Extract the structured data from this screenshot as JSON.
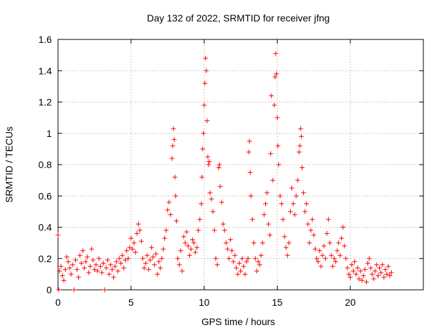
{
  "chart_data": {
    "type": "scatter",
    "title": "Day 132 of 2022, SRMTID for receiver jfng",
    "xlabel": "GPS time / hours",
    "ylabel": "SRMTID / TECUs",
    "xlim": [
      0,
      25
    ],
    "ylim": [
      0,
      1.6
    ],
    "xticks": [
      0,
      5,
      10,
      15,
      20
    ],
    "xtick_labels": [
      "0",
      "5",
      "10",
      "15",
      "20"
    ],
    "yticks": [
      0,
      0.2,
      0.4,
      0.6,
      0.8,
      1,
      1.2,
      1.4,
      1.6
    ],
    "ytick_labels": [
      "0",
      "0.2",
      "0.4",
      "0.6",
      "0.8",
      "1",
      "1.2",
      "1.4",
      "1.6"
    ],
    "grid": true,
    "marker": "+",
    "color": "#ff0000",
    "series": [
      {
        "name": "jfng",
        "points": [
          [
            0.0,
            0.35
          ],
          [
            0.05,
            0.0
          ],
          [
            0.1,
            0.12
          ],
          [
            0.2,
            0.15
          ],
          [
            0.3,
            0.09
          ],
          [
            0.4,
            0.06
          ],
          [
            0.5,
            0.13
          ],
          [
            0.6,
            0.21
          ],
          [
            0.7,
            0.18
          ],
          [
            0.8,
            0.14
          ],
          [
            0.9,
            0.1
          ],
          [
            1.0,
            0.16
          ],
          [
            1.1,
            0.0
          ],
          [
            1.2,
            0.19
          ],
          [
            1.3,
            0.13
          ],
          [
            1.4,
            0.08
          ],
          [
            1.5,
            0.22
          ],
          [
            1.6,
            0.17
          ],
          [
            1.7,
            0.25
          ],
          [
            1.8,
            0.14
          ],
          [
            1.9,
            0.18
          ],
          [
            2.0,
            0.21
          ],
          [
            2.1,
            0.11
          ],
          [
            2.2,
            0.15
          ],
          [
            2.3,
            0.26
          ],
          [
            2.4,
            0.19
          ],
          [
            2.5,
            0.13
          ],
          [
            2.6,
            0.16
          ],
          [
            2.7,
            0.12
          ],
          [
            2.8,
            0.2
          ],
          [
            2.9,
            0.15
          ],
          [
            3.0,
            0.11
          ],
          [
            3.1,
            0.17
          ],
          [
            3.2,
            0.0
          ],
          [
            3.3,
            0.14
          ],
          [
            3.4,
            0.19
          ],
          [
            3.5,
            0.1
          ],
          [
            3.6,
            0.16
          ],
          [
            3.7,
            0.13
          ],
          [
            3.8,
            0.08
          ],
          [
            3.9,
            0.15
          ],
          [
            4.0,
            0.18
          ],
          [
            4.1,
            0.12
          ],
          [
            4.2,
            0.2
          ],
          [
            4.3,
            0.17
          ],
          [
            4.4,
            0.22
          ],
          [
            4.5,
            0.14
          ],
          [
            4.6,
            0.19
          ],
          [
            4.7,
            0.25
          ],
          [
            4.8,
            0.2
          ],
          [
            4.9,
            0.27
          ],
          [
            5.0,
            0.33
          ],
          [
            5.1,
            0.26
          ],
          [
            5.2,
            0.3
          ],
          [
            5.3,
            0.24
          ],
          [
            5.4,
            0.36
          ],
          [
            5.5,
            0.42
          ],
          [
            5.6,
            0.38
          ],
          [
            5.7,
            0.31
          ],
          [
            5.8,
            0.2
          ],
          [
            5.9,
            0.14
          ],
          [
            6.0,
            0.17
          ],
          [
            6.1,
            0.22
          ],
          [
            6.2,
            0.13
          ],
          [
            6.3,
            0.19
          ],
          [
            6.4,
            0.27
          ],
          [
            6.5,
            0.21
          ],
          [
            6.6,
            0.16
          ],
          [
            6.7,
            0.23
          ],
          [
            6.8,
            0.1
          ],
          [
            6.9,
            0.18
          ],
          [
            7.0,
            0.14
          ],
          [
            7.1,
            0.2
          ],
          [
            7.2,
            0.26
          ],
          [
            7.3,
            0.33
          ],
          [
            7.4,
            0.38
          ],
          [
            7.5,
            0.51
          ],
          [
            7.6,
            0.56
          ],
          [
            7.7,
            0.48
          ],
          [
            7.8,
            0.84
          ],
          [
            7.85,
            0.92
          ],
          [
            7.9,
            1.03
          ],
          [
            7.95,
            0.96
          ],
          [
            8.0,
            0.72
          ],
          [
            8.05,
            0.6
          ],
          [
            8.1,
            0.44
          ],
          [
            8.2,
            0.2
          ],
          [
            8.3,
            0.16
          ],
          [
            8.4,
            0.25
          ],
          [
            8.5,
            0.12
          ],
          [
            8.6,
            0.34
          ],
          [
            8.7,
            0.3
          ],
          [
            8.8,
            0.37
          ],
          [
            8.9,
            0.28
          ],
          [
            9.0,
            0.22
          ],
          [
            9.1,
            0.26
          ],
          [
            9.2,
            0.32
          ],
          [
            9.3,
            0.3
          ],
          [
            9.4,
            0.24
          ],
          [
            9.5,
            0.27
          ],
          [
            9.6,
            0.38
          ],
          [
            9.7,
            0.45
          ],
          [
            9.8,
            0.55
          ],
          [
            9.85,
            0.72
          ],
          [
            9.9,
            0.9
          ],
          [
            9.95,
            1.0
          ],
          [
            10.0,
            1.18
          ],
          [
            10.05,
            1.32
          ],
          [
            10.1,
            1.48
          ],
          [
            10.15,
            1.4
          ],
          [
            10.2,
            1.08
          ],
          [
            10.25,
            0.85
          ],
          [
            10.3,
            0.8
          ],
          [
            10.35,
            0.82
          ],
          [
            10.4,
            0.62
          ],
          [
            10.5,
            0.58
          ],
          [
            10.6,
            0.5
          ],
          [
            10.7,
            0.38
          ],
          [
            10.8,
            0.2
          ],
          [
            10.9,
            0.16
          ],
          [
            11.0,
            0.78
          ],
          [
            11.05,
            0.8
          ],
          [
            11.1,
            0.66
          ],
          [
            11.2,
            0.56
          ],
          [
            11.3,
            0.42
          ],
          [
            11.4,
            0.38
          ],
          [
            11.5,
            0.3
          ],
          [
            11.6,
            0.26
          ],
          [
            11.7,
            0.2
          ],
          [
            11.8,
            0.32
          ],
          [
            11.9,
            0.25
          ],
          [
            12.0,
            0.18
          ],
          [
            12.1,
            0.22
          ],
          [
            12.2,
            0.14
          ],
          [
            12.3,
            0.1
          ],
          [
            12.4,
            0.17
          ],
          [
            12.5,
            0.12
          ],
          [
            12.6,
            0.2
          ],
          [
            12.7,
            0.15
          ],
          [
            12.8,
            0.1
          ],
          [
            12.9,
            0.18
          ],
          [
            13.0,
            0.2
          ],
          [
            13.05,
            0.88
          ],
          [
            13.1,
            0.95
          ],
          [
            13.15,
            0.75
          ],
          [
            13.2,
            0.6
          ],
          [
            13.3,
            0.45
          ],
          [
            13.4,
            0.3
          ],
          [
            13.5,
            0.2
          ],
          [
            13.6,
            0.12
          ],
          [
            13.7,
            0.18
          ],
          [
            13.8,
            0.16
          ],
          [
            13.9,
            0.22
          ],
          [
            14.0,
            0.3
          ],
          [
            14.1,
            0.48
          ],
          [
            14.2,
            0.55
          ],
          [
            14.3,
            0.62
          ],
          [
            14.4,
            0.42
          ],
          [
            14.5,
            0.35
          ],
          [
            14.55,
            0.87
          ],
          [
            14.6,
            1.24
          ],
          [
            14.7,
            0.7
          ],
          [
            14.8,
            1.18
          ],
          [
            14.85,
            1.36
          ],
          [
            14.9,
            1.51
          ],
          [
            14.95,
            1.38
          ],
          [
            15.0,
            1.1
          ],
          [
            15.05,
            0.92
          ],
          [
            15.1,
            0.8
          ],
          [
            15.2,
            0.6
          ],
          [
            15.3,
            0.55
          ],
          [
            15.4,
            0.45
          ],
          [
            15.5,
            0.34
          ],
          [
            15.6,
            0.27
          ],
          [
            15.7,
            0.22
          ],
          [
            15.8,
            0.3
          ],
          [
            15.9,
            0.5
          ],
          [
            16.0,
            0.65
          ],
          [
            16.1,
            0.55
          ],
          [
            16.2,
            0.48
          ],
          [
            16.3,
            0.6
          ],
          [
            16.4,
            0.7
          ],
          [
            16.5,
            0.88
          ],
          [
            16.55,
            0.92
          ],
          [
            16.6,
            1.03
          ],
          [
            16.65,
            0.98
          ],
          [
            16.7,
            0.78
          ],
          [
            16.8,
            0.62
          ],
          [
            16.9,
            0.5
          ],
          [
            17.0,
            0.55
          ],
          [
            17.1,
            0.42
          ],
          [
            17.2,
            0.3
          ],
          [
            17.3,
            0.38
          ],
          [
            17.4,
            0.45
          ],
          [
            17.5,
            0.35
          ],
          [
            17.6,
            0.26
          ],
          [
            17.7,
            0.2
          ],
          [
            17.8,
            0.18
          ],
          [
            17.9,
            0.25
          ],
          [
            18.0,
            0.15
          ],
          [
            18.1,
            0.22
          ],
          [
            18.2,
            0.28
          ],
          [
            18.3,
            0.2
          ],
          [
            18.4,
            0.36
          ],
          [
            18.5,
            0.45
          ],
          [
            18.6,
            0.3
          ],
          [
            18.7,
            0.22
          ],
          [
            18.8,
            0.15
          ],
          [
            18.9,
            0.2
          ],
          [
            19.0,
            0.18
          ],
          [
            19.1,
            0.25
          ],
          [
            19.2,
            0.3
          ],
          [
            19.3,
            0.22
          ],
          [
            19.4,
            0.33
          ],
          [
            19.5,
            0.4
          ],
          [
            19.6,
            0.28
          ],
          [
            19.7,
            0.2
          ],
          [
            19.8,
            0.14
          ],
          [
            19.9,
            0.1
          ],
          [
            20.0,
            0.08
          ],
          [
            20.1,
            0.16
          ],
          [
            20.2,
            0.12
          ],
          [
            20.3,
            0.18
          ],
          [
            20.4,
            0.1
          ],
          [
            20.5,
            0.14
          ],
          [
            20.6,
            0.07
          ],
          [
            20.7,
            0.12
          ],
          [
            20.8,
            0.06
          ],
          [
            20.9,
            0.09
          ],
          [
            21.0,
            0.13
          ],
          [
            21.1,
            0.05
          ],
          [
            21.2,
            0.17
          ],
          [
            21.3,
            0.2
          ],
          [
            21.4,
            0.14
          ],
          [
            21.5,
            0.1
          ],
          [
            21.6,
            0.07
          ],
          [
            21.7,
            0.12
          ],
          [
            21.8,
            0.16
          ],
          [
            21.9,
            0.09
          ],
          [
            22.0,
            0.14
          ],
          [
            22.1,
            0.11
          ],
          [
            22.2,
            0.16
          ],
          [
            22.3,
            0.08
          ],
          [
            22.4,
            0.13
          ],
          [
            22.5,
            0.1
          ],
          [
            22.6,
            0.15
          ],
          [
            22.7,
            0.09
          ],
          [
            22.8,
            0.11
          ]
        ]
      }
    ]
  }
}
